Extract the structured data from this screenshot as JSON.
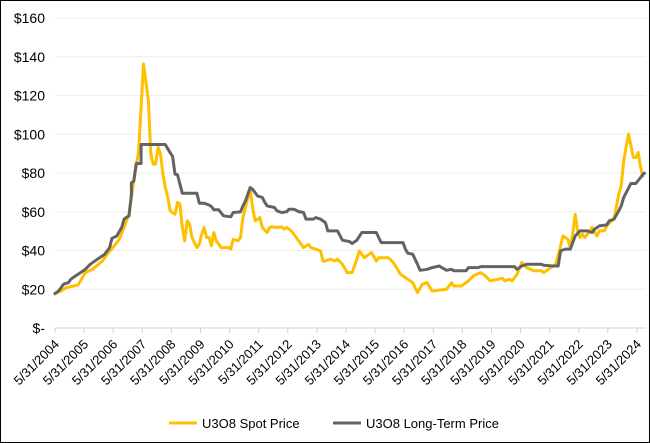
{
  "chart_data": {
    "type": "line",
    "title": "",
    "xlabel": "",
    "ylabel": "",
    "ylim": [
      0,
      160
    ],
    "grid": true,
    "legend_position": "bottom",
    "y_ticks": [
      {
        "value": 0,
        "label": "$-"
      },
      {
        "value": 20,
        "label": "$20"
      },
      {
        "value": 40,
        "label": "$40"
      },
      {
        "value": 60,
        "label": "$60"
      },
      {
        "value": 80,
        "label": "$80"
      },
      {
        "value": 100,
        "label": "$100"
      },
      {
        "value": 120,
        "label": "$120"
      },
      {
        "value": 140,
        "label": "$140"
      },
      {
        "value": 160,
        "label": "$160"
      }
    ],
    "x_ticks": [
      "5/31/2004",
      "5/31/2005",
      "5/31/2006",
      "5/31/2007",
      "5/31/2008",
      "5/31/2009",
      "5/31/2010",
      "5/31/2011",
      "5/31/2012",
      "5/31/2013",
      "5/31/2014",
      "5/31/2015",
      "5/31/2016",
      "5/31/2017",
      "5/31/2018",
      "5/31/2019",
      "5/31/2020",
      "5/31/2021",
      "5/31/2022",
      "5/31/2023",
      "5/31/2024"
    ],
    "series": [
      {
        "name": "U3O8 Spot Price",
        "color": "#FFC000",
        "points": [
          [
            "2004-05",
            17.4
          ],
          [
            "2004-08",
            19.1
          ],
          [
            "2004-10",
            20.8
          ],
          [
            "2005-03",
            22.2
          ],
          [
            "2005-04",
            24.3
          ],
          [
            "2005-06",
            28.6
          ],
          [
            "2005-09",
            30.3
          ],
          [
            "2006-01",
            34.6
          ],
          [
            "2006-03",
            38.1
          ],
          [
            "2006-06",
            42.4
          ],
          [
            "2006-08",
            45.8
          ],
          [
            "2006-10",
            51.9
          ],
          [
            "2006-12",
            58.7
          ],
          [
            "2007-01",
            67.4
          ],
          [
            "2007-02",
            76.0
          ],
          [
            "2007-04",
            91.5
          ],
          [
            "2007-05",
            113.9
          ],
          [
            "2007-06",
            136.3
          ],
          [
            "2007-08",
            117.3
          ],
          [
            "2007-09",
            89.8
          ],
          [
            "2007-10",
            84.6
          ],
          [
            "2007-11",
            84.6
          ],
          [
            "2007-12",
            93.2
          ],
          [
            "2008-01",
            89.8
          ],
          [
            "2008-02",
            79.4
          ],
          [
            "2008-03",
            72.5
          ],
          [
            "2008-04",
            67.4
          ],
          [
            "2008-05",
            60.5
          ],
          [
            "2008-07",
            58.7
          ],
          [
            "2008-08",
            64.8
          ],
          [
            "2008-09",
            63.9
          ],
          [
            "2008-10",
            51.9
          ],
          [
            "2008-11",
            45.0
          ],
          [
            "2008-12",
            55.3
          ],
          [
            "2009-01",
            53.6
          ],
          [
            "2009-02",
            46.7
          ],
          [
            "2009-04",
            41.5
          ],
          [
            "2009-05",
            43.2
          ],
          [
            "2009-06",
            48.4
          ],
          [
            "2009-07",
            51.9
          ],
          [
            "2009-08",
            46.7
          ],
          [
            "2009-09",
            46.7
          ],
          [
            "2009-10",
            42.4
          ],
          [
            "2009-11",
            49.3
          ],
          [
            "2009-12",
            45.0
          ],
          [
            "2010-02",
            41.5
          ],
          [
            "2010-05",
            41.5
          ],
          [
            "2010-06",
            40.7
          ],
          [
            "2010-07",
            45.8
          ],
          [
            "2010-09",
            45.0
          ],
          [
            "2010-10",
            46.7
          ],
          [
            "2010-11",
            57.0
          ],
          [
            "2010-12",
            62.2
          ],
          [
            "2011-02",
            71.7
          ],
          [
            "2011-03",
            62.2
          ],
          [
            "2011-04",
            55.3
          ],
          [
            "2011-06",
            57.0
          ],
          [
            "2011-07",
            51.9
          ],
          [
            "2011-09",
            49.3
          ],
          [
            "2011-10",
            51.9
          ],
          [
            "2011-11",
            52.2
          ],
          [
            "2012-01",
            51.9
          ],
          [
            "2012-03",
            52.2
          ],
          [
            "2012-04",
            51.0
          ],
          [
            "2012-05",
            51.9
          ],
          [
            "2012-07",
            50.1
          ],
          [
            "2012-09",
            46.7
          ],
          [
            "2012-12",
            41.5
          ],
          [
            "2013-02",
            43.2
          ],
          [
            "2013-03",
            41.5
          ],
          [
            "2013-05",
            40.7
          ],
          [
            "2013-07",
            39.8
          ],
          [
            "2013-08",
            34.6
          ],
          [
            "2013-09",
            34.6
          ],
          [
            "2013-11",
            35.5
          ],
          [
            "2014-01",
            34.6
          ],
          [
            "2014-02",
            35.5
          ],
          [
            "2014-04",
            32.9
          ],
          [
            "2014-06",
            28.6
          ],
          [
            "2014-08",
            28.6
          ],
          [
            "2014-10",
            35.5
          ],
          [
            "2014-11",
            39.8
          ],
          [
            "2015-01",
            36.3
          ],
          [
            "2015-04",
            38.9
          ],
          [
            "2015-06",
            34.6
          ],
          [
            "2015-07",
            36.3
          ],
          [
            "2015-11",
            36.3
          ],
          [
            "2016-01",
            33.8
          ],
          [
            "2016-04",
            27.7
          ],
          [
            "2016-07",
            25.2
          ],
          [
            "2016-09",
            23.4
          ],
          [
            "2016-11",
            18.3
          ],
          [
            "2017-01",
            22.6
          ],
          [
            "2017-03",
            23.4
          ],
          [
            "2017-05",
            19.1
          ],
          [
            "2017-11",
            20.0
          ],
          [
            "2018-01",
            23.4
          ],
          [
            "2018-02",
            21.7
          ],
          [
            "2018-05",
            21.7
          ],
          [
            "2018-08",
            24.3
          ],
          [
            "2018-10",
            26.9
          ],
          [
            "2019-01",
            28.6
          ],
          [
            "2019-03",
            26.9
          ],
          [
            "2019-05",
            24.3
          ],
          [
            "2019-10",
            25.7
          ],
          [
            "2019-11",
            24.3
          ],
          [
            "2020-01",
            25.2
          ],
          [
            "2020-02",
            24.3
          ],
          [
            "2020-04",
            27.7
          ],
          [
            "2020-06",
            33.8
          ],
          [
            "2020-08",
            31.2
          ],
          [
            "2020-11",
            29.5
          ],
          [
            "2021-02",
            29.5
          ],
          [
            "2021-03",
            28.6
          ],
          [
            "2021-05",
            30.3
          ],
          [
            "2021-07",
            32.0
          ],
          [
            "2021-08",
            32.9
          ],
          [
            "2021-10",
            42.4
          ],
          [
            "2021-11",
            47.5
          ],
          [
            "2022-01",
            45.8
          ],
          [
            "2022-02",
            41.5
          ],
          [
            "2022-03",
            48.4
          ],
          [
            "2022-04",
            58.7
          ],
          [
            "2022-05",
            50.1
          ],
          [
            "2022-06",
            46.7
          ],
          [
            "2022-07",
            48.4
          ],
          [
            "2022-08",
            46.7
          ],
          [
            "2022-09",
            48.4
          ],
          [
            "2022-11",
            51.9
          ],
          [
            "2023-01",
            47.5
          ],
          [
            "2023-02",
            50.1
          ],
          [
            "2023-04",
            50.1
          ],
          [
            "2023-05",
            52.7
          ],
          [
            "2023-07",
            55.3
          ],
          [
            "2023-08",
            56.2
          ],
          [
            "2023-10",
            69.1
          ],
          [
            "2023-11",
            73.4
          ],
          [
            "2023-12",
            86.3
          ],
          [
            "2024-02",
            100.1
          ],
          [
            "2024-04",
            88.0
          ],
          [
            "2024-05",
            88.0
          ],
          [
            "2024-06",
            90.6
          ],
          [
            "2024-07",
            82.9
          ],
          [
            "2024-08",
            77.7
          ]
        ]
      },
      {
        "name": "U3O8 Long-Term Price",
        "color": "#636363",
        "points": [
          [
            "2004-05",
            17.4
          ],
          [
            "2004-07",
            19.1
          ],
          [
            "2004-09",
            22.6
          ],
          [
            "2004-11",
            23.4
          ],
          [
            "2004-12",
            25.2
          ],
          [
            "2005-02",
            26.9
          ],
          [
            "2005-04",
            28.6
          ],
          [
            "2005-06",
            30.3
          ],
          [
            "2005-08",
            32.9
          ],
          [
            "2005-11",
            35.5
          ],
          [
            "2006-02",
            38.1
          ],
          [
            "2006-04",
            41.5
          ],
          [
            "2006-05",
            46.3
          ],
          [
            "2006-07",
            47.5
          ],
          [
            "2006-09",
            51.9
          ],
          [
            "2006-10",
            56.2
          ],
          [
            "2006-12",
            57.9
          ],
          [
            "2007-01",
            68.9
          ],
          [
            "2007-01",
            74.9
          ],
          [
            "2007-02",
            75.8
          ],
          [
            "2007-03",
            84.9
          ],
          [
            "2007-05",
            84.9
          ],
          [
            "2007-05",
            94.7
          ],
          [
            "2008-03",
            94.7
          ],
          [
            "2008-05",
            90.4
          ],
          [
            "2008-06",
            88.6
          ],
          [
            "2008-07",
            79.4
          ],
          [
            "2008-08",
            79.1
          ],
          [
            "2008-10",
            69.6
          ],
          [
            "2009-04",
            69.6
          ],
          [
            "2009-05",
            64.4
          ],
          [
            "2009-07",
            64.4
          ],
          [
            "2009-09",
            63.5
          ],
          [
            "2009-10",
            62.7
          ],
          [
            "2009-11",
            61.0
          ],
          [
            "2010-01",
            61.0
          ],
          [
            "2010-03",
            57.9
          ],
          [
            "2010-06",
            57.4
          ],
          [
            "2010-07",
            59.6
          ],
          [
            "2010-10",
            59.9
          ],
          [
            "2010-11",
            63.0
          ],
          [
            "2010-12",
            65.5
          ],
          [
            "2011-02",
            72.5
          ],
          [
            "2011-03",
            71.6
          ],
          [
            "2011-05",
            68.2
          ],
          [
            "2011-07",
            67.4
          ],
          [
            "2011-08",
            64.8
          ],
          [
            "2011-09",
            63.0
          ],
          [
            "2011-12",
            62.2
          ],
          [
            "2012-01",
            60.5
          ],
          [
            "2012-03",
            59.6
          ],
          [
            "2012-05",
            60.0
          ],
          [
            "2012-06",
            61.3
          ],
          [
            "2012-08",
            61.3
          ],
          [
            "2012-10",
            60.1
          ],
          [
            "2012-12",
            59.6
          ],
          [
            "2013-01",
            56.2
          ],
          [
            "2013-04",
            56.2
          ],
          [
            "2013-05",
            57.0
          ],
          [
            "2013-07",
            56.2
          ],
          [
            "2013-09",
            54.4
          ],
          [
            "2013-10",
            50.1
          ],
          [
            "2014-02",
            50.1
          ],
          [
            "2014-04",
            45.3
          ],
          [
            "2014-07",
            44.6
          ],
          [
            "2014-08",
            43.6
          ],
          [
            "2014-10",
            45.3
          ],
          [
            "2014-12",
            49.3
          ],
          [
            "2015-06",
            49.3
          ],
          [
            "2015-08",
            44.1
          ],
          [
            "2016-05",
            44.1
          ],
          [
            "2016-06",
            40.7
          ],
          [
            "2016-07",
            38.6
          ],
          [
            "2016-09",
            38.1
          ],
          [
            "2016-11",
            32.9
          ],
          [
            "2016-12",
            29.8
          ],
          [
            "2017-03",
            30.3
          ],
          [
            "2017-05",
            31.2
          ],
          [
            "2017-08",
            32.0
          ],
          [
            "2017-09",
            31.2
          ],
          [
            "2017-11",
            29.8
          ],
          [
            "2018-01",
            30.3
          ],
          [
            "2018-02",
            29.5
          ],
          [
            "2018-07",
            29.5
          ],
          [
            "2018-08",
            31.2
          ],
          [
            "2018-12",
            31.2
          ],
          [
            "2019-01",
            31.7
          ],
          [
            "2020-03",
            31.7
          ],
          [
            "2020-04",
            30.3
          ],
          [
            "2020-06",
            32.0
          ],
          [
            "2020-08",
            32.9
          ],
          [
            "2021-02",
            32.9
          ],
          [
            "2021-03",
            32.4
          ],
          [
            "2021-07",
            32.0
          ],
          [
            "2021-09",
            32.0
          ],
          [
            "2021-10",
            39.8
          ],
          [
            "2021-12",
            40.7
          ],
          [
            "2022-02",
            40.7
          ],
          [
            "2022-04",
            47.5
          ],
          [
            "2022-06",
            50.1
          ],
          [
            "2022-09",
            50.1
          ],
          [
            "2022-11",
            49.3
          ],
          [
            "2022-12",
            51.0
          ],
          [
            "2023-02",
            52.7
          ],
          [
            "2023-05",
            53.2
          ],
          [
            "2023-06",
            55.3
          ],
          [
            "2023-08",
            56.2
          ],
          [
            "2023-10",
            60.5
          ],
          [
            "2023-11",
            63.0
          ],
          [
            "2023-12",
            67.4
          ],
          [
            "2024-03",
            74.6
          ],
          [
            "2024-05",
            74.6
          ],
          [
            "2024-07",
            77.7
          ],
          [
            "2024-08",
            79.4
          ],
          [
            "2024-09",
            80.3
          ]
        ]
      }
    ]
  }
}
